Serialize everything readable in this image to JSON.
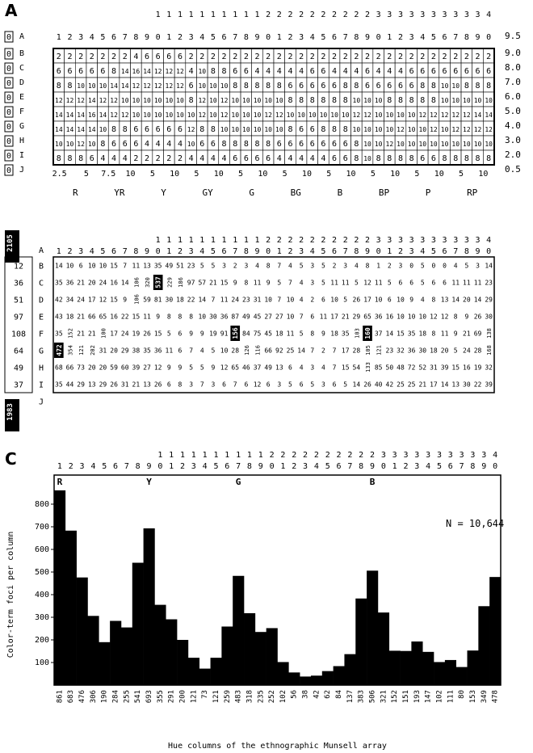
{
  "panels": {
    "a": {
      "letter": "A"
    },
    "b": {
      "letter": "B"
    },
    "c": {
      "letter": "C"
    }
  },
  "munsell_a": {
    "rows": [
      "A",
      "B",
      "C",
      "D",
      "E",
      "F",
      "G",
      "H",
      "I",
      "J"
    ],
    "left_values": [
      "0",
      "0",
      "0",
      "0",
      "0",
      "0",
      "0",
      "0",
      "0",
      "0"
    ],
    "right_values": [
      "9.5",
      "9.0",
      "8.0",
      "7.0",
      "6.0",
      "5.0",
      "4.0",
      "3.0",
      "2.0",
      "0.5"
    ],
    "grid": [
      [
        2,
        2,
        2,
        2,
        2,
        2,
        2,
        4,
        6,
        6,
        6,
        6,
        2,
        2,
        2,
        2,
        2,
        2,
        2,
        2,
        2,
        2,
        2,
        2,
        2,
        2,
        2,
        2,
        2,
        2,
        2,
        2,
        2,
        2,
        2,
        2,
        2,
        2,
        2,
        2
      ],
      [
        6,
        6,
        6,
        6,
        6,
        8,
        14,
        16,
        14,
        12,
        12,
        12,
        4,
        10,
        8,
        8,
        6,
        6,
        4,
        4,
        4,
        4,
        4,
        6,
        6,
        4,
        4,
        4,
        6,
        4,
        4,
        4,
        6,
        6,
        6,
        6,
        6,
        6,
        6,
        6
      ],
      [
        8,
        8,
        10,
        10,
        10,
        14,
        14,
        12,
        12,
        12,
        12,
        12,
        6,
        10,
        10,
        10,
        8,
        8,
        8,
        8,
        8,
        6,
        6,
        6,
        6,
        6,
        8,
        8,
        6,
        6,
        6,
        6,
        6,
        8,
        8,
        10,
        10,
        8,
        8,
        8
      ],
      [
        12,
        12,
        12,
        14,
        12,
        12,
        10,
        10,
        10,
        10,
        10,
        10,
        8,
        12,
        10,
        12,
        10,
        10,
        10,
        10,
        10,
        8,
        8,
        8,
        8,
        8,
        8,
        10,
        10,
        10,
        8,
        8,
        8,
        8,
        8,
        10,
        10,
        10,
        10,
        10
      ],
      [
        14,
        14,
        14,
        16,
        14,
        12,
        12,
        10,
        10,
        10,
        10,
        10,
        10,
        12,
        10,
        12,
        10,
        10,
        10,
        12,
        12,
        10,
        10,
        10,
        10,
        10,
        10,
        12,
        12,
        10,
        10,
        10,
        10,
        12,
        12,
        12,
        12,
        12,
        14,
        14
      ],
      [
        14,
        14,
        14,
        14,
        10,
        8,
        8,
        6,
        6,
        6,
        6,
        6,
        12,
        8,
        8,
        10,
        10,
        10,
        10,
        10,
        10,
        8,
        6,
        6,
        8,
        8,
        8,
        10,
        10,
        10,
        10,
        12,
        10,
        10,
        12,
        10,
        12,
        12,
        12,
        12
      ],
      [
        10,
        10,
        12,
        10,
        8,
        6,
        6,
        6,
        4,
        4,
        4,
        4,
        10,
        6,
        6,
        8,
        8,
        8,
        8,
        8,
        6,
        6,
        6,
        6,
        6,
        6,
        6,
        8,
        10,
        10,
        12,
        10,
        10,
        10,
        10,
        10,
        10,
        10,
        10,
        10
      ],
      [
        8,
        8,
        8,
        6,
        4,
        4,
        4,
        2,
        2,
        2,
        2,
        2,
        4,
        4,
        4,
        4,
        6,
        6,
        6,
        6,
        4,
        4,
        4,
        4,
        4,
        6,
        6,
        8,
        10,
        8,
        8,
        8,
        8,
        6,
        6,
        8,
        8,
        8,
        8,
        8
      ]
    ],
    "bottom_labels": [
      "2.5",
      "5",
      "7.5",
      "10",
      "5",
      "10",
      "5",
      "10",
      "5",
      "10",
      "5",
      "10",
      "5",
      "10",
      "5",
      "10",
      "5",
      "10",
      "5",
      "10"
    ],
    "hue_names": [
      "R",
      "YR",
      "Y",
      "GY",
      "G",
      "BG",
      "B",
      "BP",
      "P",
      "RP"
    ]
  },
  "munsell_b": {
    "left_values": [
      "2105",
      "12",
      "36",
      "51",
      "97",
      "108",
      "64",
      "49",
      "37",
      "1983"
    ],
    "grid": [
      [
        14,
        10,
        6,
        10,
        10,
        15,
        7,
        11,
        13,
        35,
        49,
        51,
        23,
        5,
        5,
        3,
        2,
        3,
        4,
        8,
        7,
        4,
        5,
        3,
        5,
        2,
        3,
        4,
        8,
        1,
        2,
        3,
        0,
        5,
        0,
        0,
        4,
        5,
        3,
        14
      ],
      [
        35,
        36,
        21,
        20,
        24,
        16,
        14,
        106,
        320,
        537,
        229,
        186,
        97,
        57,
        21,
        15,
        9,
        8,
        11,
        9,
        5,
        7,
        4,
        3,
        5,
        11,
        11,
        5,
        12,
        11,
        5,
        6,
        6,
        5,
        6,
        6,
        11,
        11,
        11,
        23
      ],
      [
        42,
        34,
        24,
        17,
        12,
        15,
        9,
        106,
        59,
        81,
        30,
        18,
        22,
        14,
        7,
        11,
        24,
        23,
        31,
        10,
        7,
        10,
        4,
        2,
        6,
        10,
        5,
        26,
        17,
        10,
        6,
        10,
        9,
        4,
        8,
        13,
        14,
        20,
        14,
        29
      ],
      [
        43,
        18,
        21,
        66,
        65,
        16,
        22,
        15,
        11,
        9,
        8,
        8,
        8,
        10,
        30,
        36,
        87,
        49,
        45,
        27,
        27,
        10,
        7,
        6,
        11,
        17,
        21,
        29,
        65,
        36,
        16,
        10,
        10,
        10,
        12,
        12,
        8,
        9,
        26,
        30
      ],
      [
        35,
        152,
        21,
        21,
        100,
        17,
        24,
        19,
        26,
        15,
        5,
        6,
        9,
        9,
        19,
        91,
        156,
        84,
        75,
        45,
        18,
        11,
        5,
        8,
        9,
        18,
        35,
        103,
        160,
        37,
        14,
        15,
        35,
        18,
        8,
        11,
        9,
        21,
        69,
        138
      ],
      [
        472,
        354,
        121,
        202,
        31,
        20,
        29,
        38,
        35,
        36,
        11,
        6,
        7,
        4,
        5,
        10,
        28,
        126,
        116,
        66,
        92,
        25,
        14,
        7,
        2,
        7,
        17,
        28,
        105,
        121,
        23,
        32,
        36,
        30,
        18,
        20,
        5,
        24,
        28,
        168
      ],
      [
        68,
        66,
        73,
        20,
        20,
        59,
        60,
        39,
        27,
        12,
        9,
        9,
        5,
        5,
        9,
        12,
        65,
        46,
        37,
        49,
        13,
        6,
        4,
        3,
        4,
        7,
        15,
        54,
        133,
        85,
        50,
        48,
        72,
        52,
        31,
        39,
        15,
        16,
        19,
        32
      ],
      [
        35,
        44,
        29,
        13,
        29,
        26,
        31,
        21,
        13,
        26,
        6,
        8,
        3,
        7,
        3,
        6,
        7,
        6,
        12,
        6,
        3,
        5,
        6,
        5,
        3,
        6,
        5,
        14,
        26,
        40,
        42,
        25,
        25,
        21,
        17,
        14,
        13,
        30,
        22,
        39
      ]
    ]
  },
  "chart_data": {
    "type": "bar",
    "categories": [
      "1",
      "2",
      "3",
      "4",
      "5",
      "6",
      "7",
      "8",
      "9",
      "10",
      "11",
      "12",
      "13",
      "14",
      "15",
      "16",
      "17",
      "18",
      "19",
      "20",
      "21",
      "22",
      "23",
      "24",
      "25",
      "26",
      "27",
      "28",
      "29",
      "30",
      "31",
      "32",
      "33",
      "34",
      "35",
      "36",
      "37",
      "38",
      "39",
      "40"
    ],
    "values": [
      861,
      683,
      476,
      306,
      190,
      284,
      255,
      541,
      693,
      355,
      291,
      200,
      121,
      73,
      121,
      259,
      483,
      318,
      235,
      252,
      102,
      56,
      38,
      42,
      62,
      84,
      137,
      383,
      506,
      321,
      152,
      151,
      193,
      147,
      102,
      111,
      80,
      153,
      349,
      478
    ],
    "hue_markers": [
      "R",
      "Y",
      "G",
      "B"
    ],
    "annotation": "N = 10,644",
    "xlabel": "Hue columns of the ethnographic Munsell array",
    "ylabel": "Color-term foci per column",
    "yticks": [
      100,
      200,
      300,
      400,
      500,
      600,
      700,
      800
    ],
    "ylim": [
      0,
      900
    ]
  }
}
